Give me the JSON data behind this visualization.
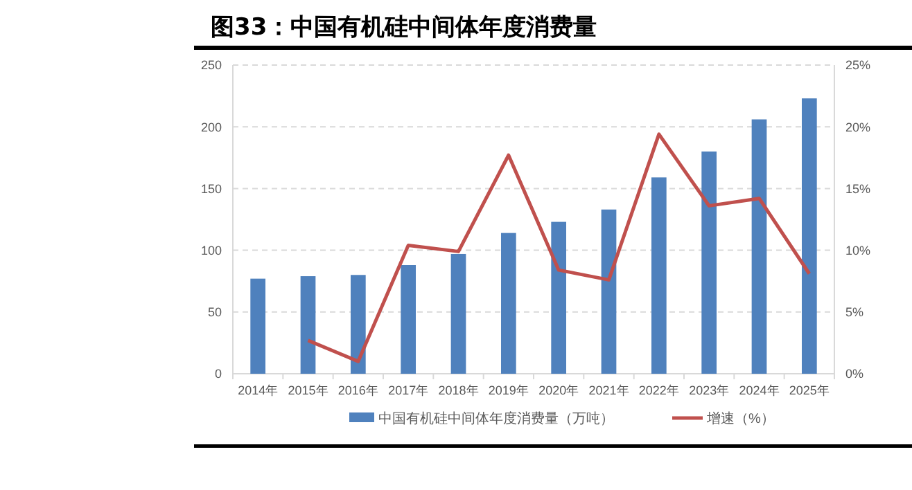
{
  "chart_data": {
    "type": "bar",
    "title": "图33：中国有机硅中间体年度消费量",
    "categories": [
      "2014年",
      "2015年",
      "2016年",
      "2017年",
      "2018年",
      "2019年",
      "2020年",
      "2021年",
      "2022年",
      "2023年",
      "2024年",
      "2025年"
    ],
    "series": [
      {
        "name": "中国有机硅中间体年度消费量（万吨）",
        "color": "#4f81bd",
        "values": [
          77,
          79,
          80,
          88,
          97,
          114,
          123,
          133,
          159,
          180,
          206,
          223
        ]
      },
      {
        "name": "增速（%）",
        "type": "line",
        "axis": "y2",
        "color": "#c0504d",
        "values": [
          null,
          2.7,
          1.0,
          10.4,
          9.9,
          17.7,
          8.4,
          7.6,
          19.4,
          13.6,
          14.2,
          8.1
        ]
      }
    ],
    "ylim": [
      0,
      250
    ],
    "yticks": [
      0,
      50,
      100,
      150,
      200,
      250
    ],
    "y2lim": [
      0,
      25
    ],
    "y2ticks": [
      {
        "value": 0,
        "label": "0%"
      },
      {
        "value": 5,
        "label": "5%"
      },
      {
        "value": 10,
        "label": "10%"
      },
      {
        "value": 15,
        "label": "15%"
      },
      {
        "value": 20,
        "label": "20%"
      },
      {
        "value": 25,
        "label": "25%"
      }
    ],
    "grid": "y",
    "legend": "bottom",
    "marker": "none",
    "line_style": "solid"
  }
}
